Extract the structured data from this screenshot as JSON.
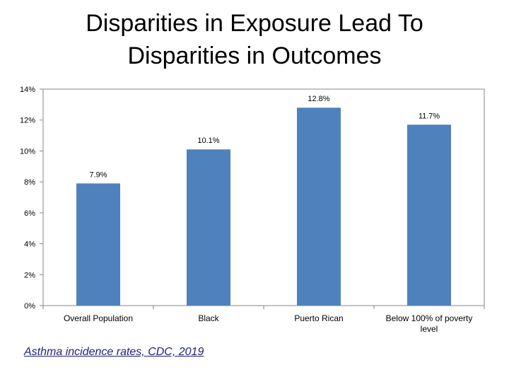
{
  "title": {
    "line1": "Disparities in Exposure Lead To",
    "line2": "Disparities in Outcomes"
  },
  "source_link": "Asthma incidence rates, CDC, 2019",
  "chart_data": {
    "type": "bar",
    "categories": [
      "Overall Population",
      "Black",
      "Puerto Rican",
      "Below 100% of poverty level"
    ],
    "values": [
      7.9,
      10.1,
      12.8,
      11.7
    ],
    "data_labels": [
      "7.9%",
      "10.1%",
      "12.8%",
      "11.7%"
    ],
    "y_ticks": [
      "0%",
      "2%",
      "4%",
      "6%",
      "8%",
      "10%",
      "12%",
      "14%"
    ],
    "ylim": [
      0,
      14
    ],
    "y_unit": "%",
    "grid": false,
    "legend": "none",
    "colors": {
      "bar": "#4f81bd",
      "axis": "#868686",
      "text": "#000000"
    }
  }
}
